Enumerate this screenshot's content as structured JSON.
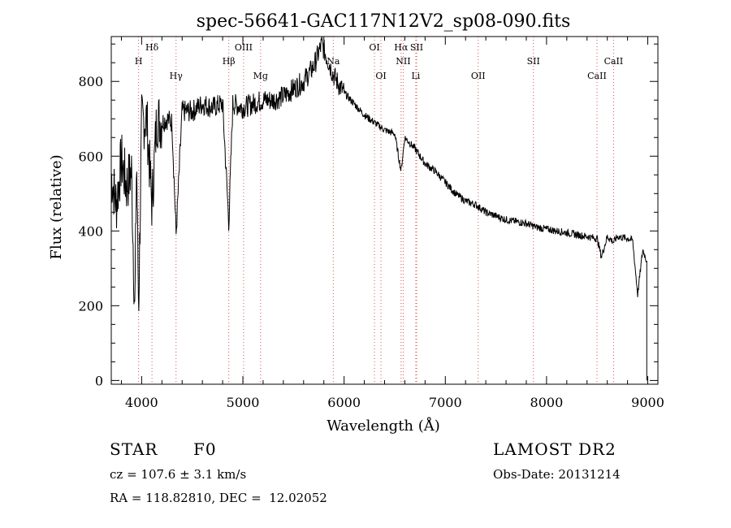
{
  "chart_data": {
    "type": "line",
    "title": "spec-56641-GAC117N12V2_sp08-090.fits",
    "xlabel": "Wavelength (Å)",
    "ylabel": "Flux (relative)",
    "xlim": [
      3700,
      9100
    ],
    "ylim": [
      -10,
      920
    ],
    "x_ticks": [
      4000,
      5000,
      6000,
      7000,
      8000,
      9000
    ],
    "y_ticks": [
      0,
      200,
      400,
      600,
      800
    ],
    "series": [
      {
        "x": [
          3700,
          3750,
          3800,
          3850,
          3900,
          3933,
          3950,
          3970,
          4000,
          4050,
          4101,
          4150,
          4200,
          4250,
          4300,
          4340,
          4400,
          4500,
          4600,
          4700,
          4800,
          4861,
          4900,
          5000,
          5100,
          5200,
          5300,
          5400,
          5500,
          5600,
          5700,
          5780,
          5820,
          5850,
          5890,
          5950,
          6000,
          6100,
          6200,
          6300,
          6400,
          6500,
          6563,
          6600,
          6700,
          6800,
          6900,
          7000,
          7100,
          7200,
          7300,
          7400,
          7500,
          7600,
          7700,
          7800,
          7900,
          8000,
          8100,
          8200,
          8300,
          8400,
          8500,
          8542,
          8600,
          8662,
          8700,
          8800,
          8850,
          8900,
          8950,
          8990
        ],
        "y": [
          550,
          470,
          590,
          520,
          560,
          170,
          600,
          190,
          690,
          700,
          470,
          700,
          690,
          700,
          690,
          390,
          720,
          720,
          740,
          730,
          740,
          420,
          740,
          730,
          740,
          750,
          750,
          760,
          780,
          800,
          840,
          900,
          870,
          850,
          820,
          790,
          770,
          740,
          710,
          690,
          670,
          660,
          560,
          650,
          620,
          580,
          560,
          530,
          500,
          480,
          470,
          450,
          440,
          430,
          425,
          420,
          410,
          405,
          400,
          395,
          390,
          385,
          380,
          330,
          385,
          370,
          385,
          380,
          375,
          230,
          350,
          320
        ]
      }
    ],
    "line_markers": [
      {
        "label": "H",
        "wavelength": 3970,
        "row": "upper"
      },
      {
        "label": "Hδ",
        "wavelength": 4102,
        "row": "top"
      },
      {
        "label": "Hγ",
        "wavelength": 4340,
        "row": "lower"
      },
      {
        "label": "Hβ",
        "wavelength": 4861,
        "row": "upper"
      },
      {
        "label": "OIII",
        "wavelength": 5007,
        "row": "top"
      },
      {
        "label": "Mg",
        "wavelength": 5175,
        "row": "lower"
      },
      {
        "label": "Na",
        "wavelength": 5893,
        "row": "upper"
      },
      {
        "label": "OI",
        "wavelength": 6300,
        "row": "top"
      },
      {
        "label": "OI",
        "wavelength": 6364,
        "row": "lower"
      },
      {
        "label": "Hα",
        "wavelength": 6563,
        "row": "top"
      },
      {
        "label": "NII",
        "wavelength": 6584,
        "row": "upper"
      },
      {
        "label": "SII",
        "wavelength": 6717,
        "row": "top"
      },
      {
        "label": "Li",
        "wavelength": 6708,
        "row": "lower"
      },
      {
        "label": "OII",
        "wavelength": 7325,
        "row": "lower"
      },
      {
        "label": "SII",
        "wavelength": 7870,
        "row": "upper"
      },
      {
        "label": "CaII",
        "wavelength": 8498,
        "row": "lower"
      },
      {
        "label": "CaII",
        "wavelength": 8662,
        "row": "upper"
      }
    ],
    "grid": false,
    "line_color": "#000000",
    "marker_color": "#d9534f"
  },
  "info": {
    "object_class": "STAR",
    "subclass": "F0",
    "cz": "cz = 107.6 ± 3.1 km/s",
    "coords": "RA = 118.82810, DEC =  12.02052",
    "survey": "LAMOST DR2",
    "obs_date": "Obs-Date: 20131214"
  }
}
